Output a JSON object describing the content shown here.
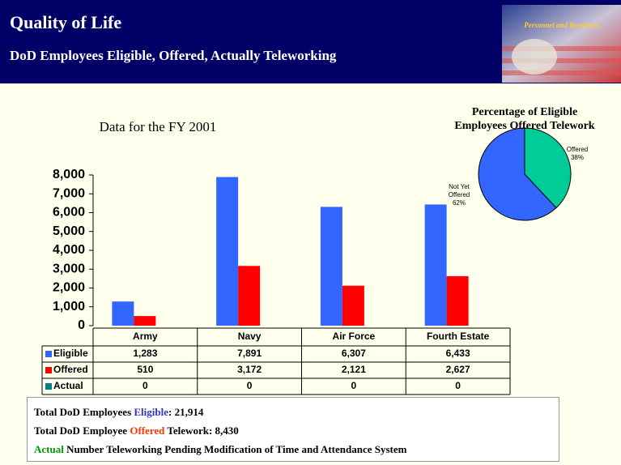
{
  "header": {
    "title": "Quality of Life",
    "subtitle": "DoD Employees Eligible, Offered, Actually Teleworking",
    "logo_text": "Personnel and Readiness"
  },
  "chart_data": [
    {
      "type": "bar",
      "title": "Data for the FY 2001",
      "categories": [
        "Army",
        "Navy",
        "Air Force",
        "Fourth Estate"
      ],
      "series": [
        {
          "name": "Eligible",
          "color": "#3366ff",
          "values": [
            1283,
            7891,
            6307,
            6433
          ],
          "value_labels": [
            "1,283",
            "7,891",
            "6,307",
            "6,433"
          ]
        },
        {
          "name": "Offered",
          "color": "#ff0000",
          "values": [
            510,
            3172,
            2121,
            2627
          ],
          "value_labels": [
            "510",
            "3,172",
            "2,121",
            "2,627"
          ]
        },
        {
          "name": "Actual",
          "color": "#008080",
          "values": [
            0,
            0,
            0,
            0
          ]
        }
      ],
      "ylim": [
        0,
        8000
      ],
      "yticks": [
        0,
        {
          "value": 1000,
          "label": "1,000"
        },
        {
          "value": 2000,
          "label": "2,000"
        },
        {
          "value": 3000,
          "label": "3,000"
        },
        {
          "value": 4000,
          "label": "4,000"
        },
        {
          "value": 5000,
          "label": "5,000"
        },
        {
          "value": 6000,
          "label": "6,000"
        },
        {
          "value": 7000,
          "label": "7,000"
        },
        {
          "value": 8000,
          "label": "8,000"
        }
      ],
      "grid": false
    },
    {
      "type": "pie",
      "title": "Percentage of Eligible Employees Offered Telework",
      "categories": [
        "Offered",
        "Not Yet Offered"
      ],
      "values": [
        38,
        62
      ],
      "value_labels": [
        "38%",
        "62%"
      ],
      "colors": [
        "#00cc99",
        "#3366ff"
      ]
    }
  ],
  "footer": {
    "lines": [
      [
        "Total DoD Employees ",
        "Eligible",
        ": 21,914"
      ],
      [
        "Total DoD Employee ",
        "Offered",
        " Telework: 8,430"
      ],
      [
        "",
        "Actual",
        " Number Teleworking Pending Modification of Time and Attendance System"
      ]
    ]
  }
}
